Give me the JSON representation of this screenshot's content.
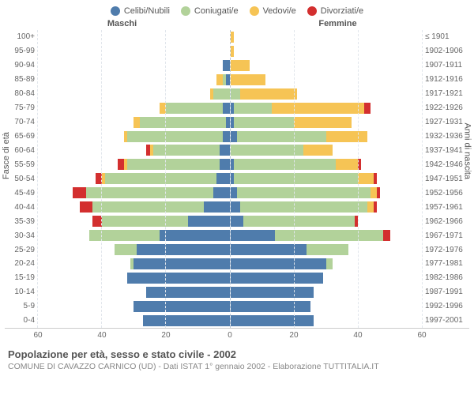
{
  "legend": [
    {
      "label": "Celibi/Nubili",
      "color": "#4f7cac"
    },
    {
      "label": "Coniugati/e",
      "color": "#b2d29a"
    },
    {
      "label": "Vedovi/e",
      "color": "#f6c455"
    },
    {
      "label": "Divorziati/e",
      "color": "#d32f2f"
    }
  ],
  "header": {
    "males": "Maschi",
    "females": "Femmine",
    "birth_years_hint": ""
  },
  "axis_titles": {
    "left": "Fasce di età",
    "right": "Anni di nascita"
  },
  "colors": {
    "celibi": "#4f7cac",
    "coniugati": "#b2d29a",
    "vedovi": "#f6c455",
    "divorziati": "#d32f2f",
    "grid": "#e1e6ec",
    "centerline": "#b9c6d5",
    "text": "#666",
    "bg": "#ffffff"
  },
  "xaxis": {
    "max": 60,
    "ticks": [
      60,
      40,
      20,
      0,
      20,
      40,
      60
    ]
  },
  "rows": [
    {
      "age": "100+",
      "birth": "≤ 1901",
      "m": [
        0,
        0,
        0,
        0
      ],
      "f": [
        0,
        0,
        1,
        0
      ]
    },
    {
      "age": "95-99",
      "birth": "1902-1906",
      "m": [
        0,
        0,
        0,
        0
      ],
      "f": [
        0,
        0,
        1,
        0
      ]
    },
    {
      "age": "90-94",
      "birth": "1907-1911",
      "m": [
        2,
        0,
        0,
        0
      ],
      "f": [
        0,
        0,
        6,
        0
      ]
    },
    {
      "age": "85-89",
      "birth": "1912-1916",
      "m": [
        1,
        1,
        2,
        0
      ],
      "f": [
        0,
        0,
        11,
        0
      ]
    },
    {
      "age": "80-84",
      "birth": "1917-1921",
      "m": [
        0,
        5,
        1,
        0
      ],
      "f": [
        0,
        3,
        18,
        0
      ]
    },
    {
      "age": "75-79",
      "birth": "1922-1926",
      "m": [
        2,
        18,
        2,
        0
      ],
      "f": [
        1,
        12,
        29,
        2
      ]
    },
    {
      "age": "70-74",
      "birth": "1927-1931",
      "m": [
        1,
        27,
        2,
        0
      ],
      "f": [
        1,
        19,
        18,
        0
      ]
    },
    {
      "age": "65-69",
      "birth": "1932-1936",
      "m": [
        2,
        30,
        1,
        0
      ],
      "f": [
        2,
        28,
        13,
        0
      ]
    },
    {
      "age": "60-64",
      "birth": "1937-1941",
      "m": [
        3,
        21,
        1,
        1
      ],
      "f": [
        0,
        23,
        9,
        0
      ]
    },
    {
      "age": "55-59",
      "birth": "1942-1946",
      "m": [
        3,
        29,
        1,
        2
      ],
      "f": [
        1,
        32,
        7,
        1
      ]
    },
    {
      "age": "50-54",
      "birth": "1947-1951",
      "m": [
        4,
        35,
        1,
        2
      ],
      "f": [
        1,
        39,
        5,
        1
      ]
    },
    {
      "age": "45-49",
      "birth": "1952-1956",
      "m": [
        5,
        40,
        0,
        4
      ],
      "f": [
        2,
        42,
        2,
        1
      ]
    },
    {
      "age": "40-44",
      "birth": "1957-1961",
      "m": [
        8,
        35,
        0,
        4
      ],
      "f": [
        3,
        40,
        2,
        1
      ]
    },
    {
      "age": "35-39",
      "birth": "1962-1966",
      "m": [
        13,
        27,
        0,
        3
      ],
      "f": [
        4,
        35,
        0,
        1
      ]
    },
    {
      "age": "30-34",
      "birth": "1967-1971",
      "m": [
        22,
        22,
        0,
        0
      ],
      "f": [
        14,
        34,
        0,
        2
      ]
    },
    {
      "age": "25-29",
      "birth": "1972-1976",
      "m": [
        29,
        7,
        0,
        0
      ],
      "f": [
        24,
        13,
        0,
        0
      ]
    },
    {
      "age": "20-24",
      "birth": "1977-1981",
      "m": [
        30,
        1,
        0,
        0
      ],
      "f": [
        30,
        2,
        0,
        0
      ]
    },
    {
      "age": "15-19",
      "birth": "1982-1986",
      "m": [
        32,
        0,
        0,
        0
      ],
      "f": [
        29,
        0,
        0,
        0
      ]
    },
    {
      "age": "10-14",
      "birth": "1987-1991",
      "m": [
        26,
        0,
        0,
        0
      ],
      "f": [
        26,
        0,
        0,
        0
      ]
    },
    {
      "age": "5-9",
      "birth": "1992-1996",
      "m": [
        30,
        0,
        0,
        0
      ],
      "f": [
        25,
        0,
        0,
        0
      ]
    },
    {
      "age": "0-4",
      "birth": "1997-2001",
      "m": [
        27,
        0,
        0,
        0
      ],
      "f": [
        26,
        0,
        0,
        0
      ]
    }
  ],
  "caption": {
    "title": "Popolazione per età, sesso e stato civile - 2002",
    "sub": "COMUNE DI CAVAZZO CARNICO (UD) - Dati ISTAT 1° gennaio 2002 - Elaborazione TUTTITALIA.IT"
  }
}
